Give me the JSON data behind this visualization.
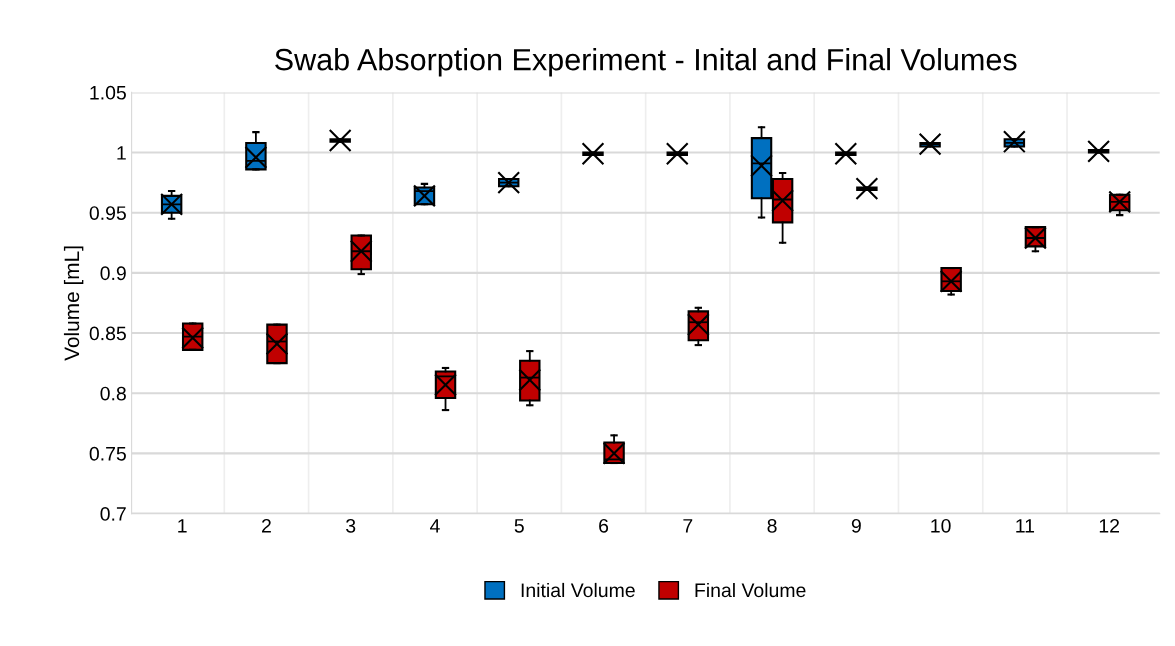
{
  "chart_data": {
    "type": "box",
    "title": "Swab Absorption Experiment - Inital and Final Volumes",
    "ylabel": "Volume [mL]",
    "categories": [
      "1",
      "2",
      "3",
      "4",
      "5",
      "6",
      "7",
      "8",
      "9",
      "10",
      "11",
      "12"
    ],
    "ylim": [
      0.7,
      1.05
    ],
    "yticks": [
      {
        "value": 0.7,
        "label": "0.7"
      },
      {
        "value": 0.75,
        "label": "0.75"
      },
      {
        "value": 0.8,
        "label": "0.8"
      },
      {
        "value": 0.85,
        "label": "0.85"
      },
      {
        "value": 0.9,
        "label": "0.9"
      },
      {
        "value": 0.95,
        "label": "0.95"
      },
      {
        "value": 1.0,
        "label": "1"
      },
      {
        "value": 1.05,
        "label": "1.05"
      }
    ],
    "grid": true,
    "legend": "bottom",
    "marker": "cross",
    "series": [
      {
        "name": "Initial Volume",
        "color": "#0070c0",
        "boxes": [
          {
            "low": 0.945,
            "q1": 0.95,
            "median": 0.957,
            "q3": 0.964,
            "high": 0.968,
            "mean": 0.957
          },
          {
            "low": 0.986,
            "q1": 0.986,
            "median": 0.993,
            "q3": 1.008,
            "high": 1.017,
            "mean": 0.996
          },
          {
            "low": 1.009,
            "q1": 1.009,
            "median": 1.01,
            "q3": 1.011,
            "high": 1.011,
            "mean": 1.01
          },
          {
            "low": 0.957,
            "q1": 0.957,
            "median": 0.968,
            "q3": 0.971,
            "high": 0.974,
            "mean": 0.964
          },
          {
            "low": 0.972,
            "q1": 0.972,
            "median": 0.975,
            "q3": 0.978,
            "high": 0.978,
            "mean": 0.975
          },
          {
            "low": 0.998,
            "q1": 0.998,
            "median": 0.999,
            "q3": 1.0,
            "high": 1.0,
            "mean": 0.999
          },
          {
            "low": 0.998,
            "q1": 0.998,
            "median": 0.999,
            "q3": 1.0,
            "high": 1.0,
            "mean": 0.999
          },
          {
            "low": 0.946,
            "q1": 0.962,
            "median": 0.991,
            "q3": 1.012,
            "high": 1.021,
            "mean": 0.989
          },
          {
            "low": 0.998,
            "q1": 0.998,
            "median": 0.999,
            "q3": 1.0,
            "high": 1.0,
            "mean": 0.999
          },
          {
            "low": 1.005,
            "q1": 1.005,
            "median": 1.007,
            "q3": 1.008,
            "high": 1.008,
            "mean": 1.007
          },
          {
            "low": 1.005,
            "q1": 1.005,
            "median": 1.008,
            "q3": 1.011,
            "high": 1.011,
            "mean": 1.009
          },
          {
            "low": 1.0,
            "q1": 1.0,
            "median": 1.001,
            "q3": 1.002,
            "high": 1.002,
            "mean": 1.001
          }
        ]
      },
      {
        "name": "Final Volume",
        "color": "#c00000",
        "boxes": [
          {
            "low": 0.836,
            "q1": 0.836,
            "median": 0.847,
            "q3": 0.858,
            "high": 0.858,
            "mean": 0.846
          },
          {
            "low": 0.825,
            "q1": 0.825,
            "median": 0.843,
            "q3": 0.857,
            "high": 0.857,
            "mean": 0.841
          },
          {
            "low": 0.899,
            "q1": 0.903,
            "median": 0.918,
            "q3": 0.931,
            "high": 0.931,
            "mean": 0.918
          },
          {
            "low": 0.786,
            "q1": 0.796,
            "median": 0.814,
            "q3": 0.818,
            "high": 0.821,
            "mean": 0.807
          },
          {
            "low": 0.79,
            "q1": 0.794,
            "median": 0.813,
            "q3": 0.827,
            "high": 0.835,
            "mean": 0.811
          },
          {
            "low": 0.742,
            "q1": 0.742,
            "median": 0.745,
            "q3": 0.759,
            "high": 0.765,
            "mean": 0.75
          },
          {
            "low": 0.84,
            "q1": 0.844,
            "median": 0.859,
            "q3": 0.868,
            "high": 0.871,
            "mean": 0.857
          },
          {
            "low": 0.925,
            "q1": 0.942,
            "median": 0.961,
            "q3": 0.978,
            "high": 0.983,
            "mean": 0.96
          },
          {
            "low": 0.969,
            "q1": 0.969,
            "median": 0.97,
            "q3": 0.971,
            "high": 0.971,
            "mean": 0.97
          },
          {
            "low": 0.882,
            "q1": 0.885,
            "median": 0.893,
            "q3": 0.904,
            "high": 0.904,
            "mean": 0.893
          },
          {
            "low": 0.918,
            "q1": 0.922,
            "median": 0.929,
            "q3": 0.938,
            "high": 0.938,
            "mean": 0.929
          },
          {
            "low": 0.948,
            "q1": 0.952,
            "median": 0.959,
            "q3": 0.965,
            "high": 0.965,
            "mean": 0.959
          }
        ]
      }
    ]
  }
}
